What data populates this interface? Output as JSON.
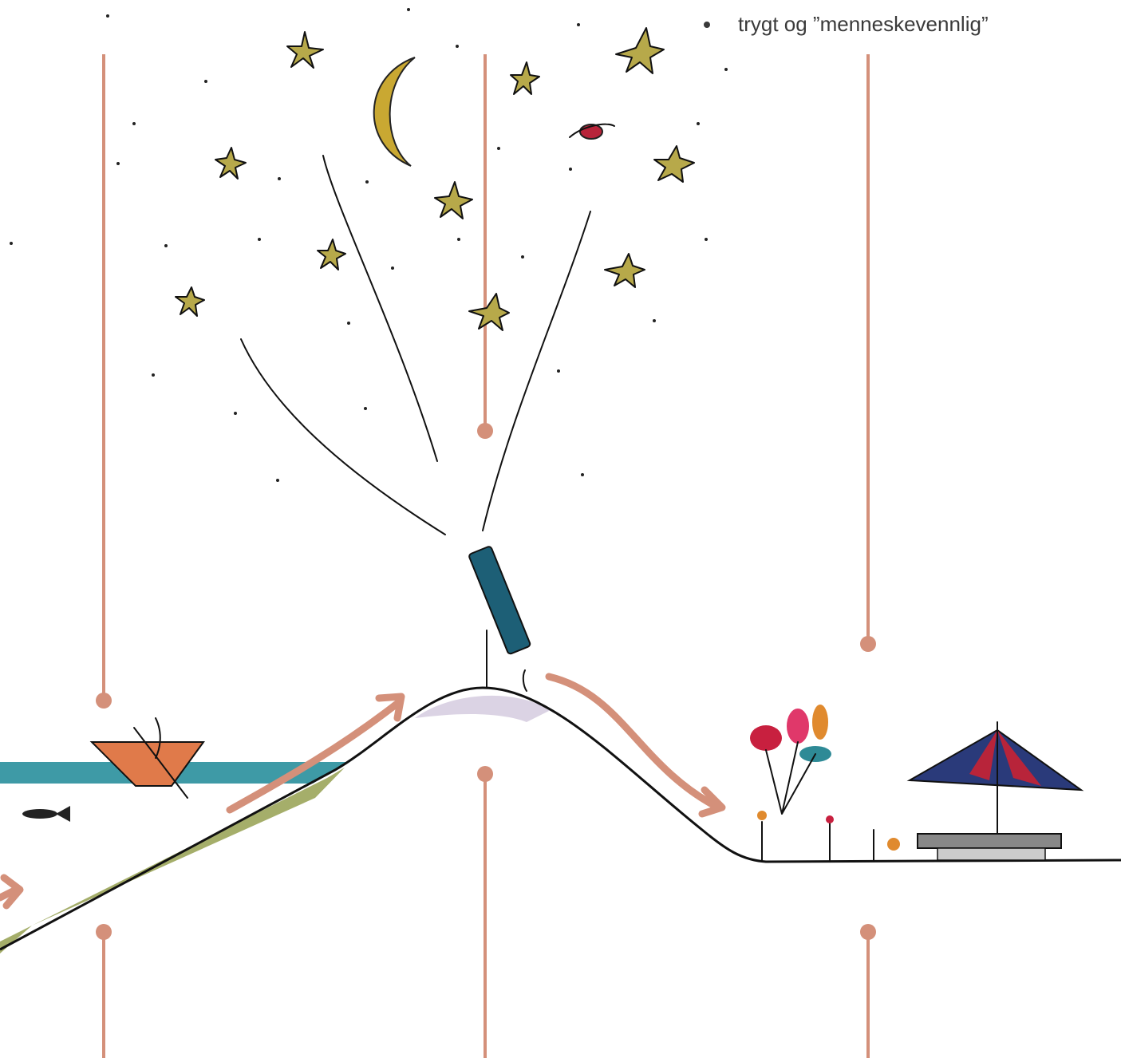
{
  "bullets": [
    "trygt og ”menneskevennlig”"
  ]
}
